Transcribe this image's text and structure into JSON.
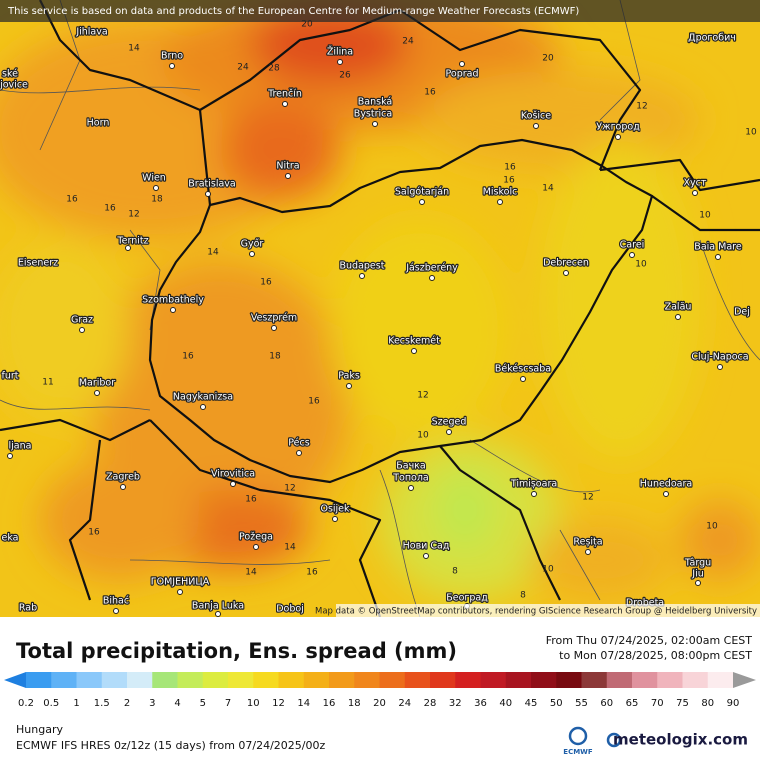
{
  "map": {
    "notice": "This service is based on data and products of the European Centre for Medium-range Weather Forecasts (ECMWF)",
    "attribution": "Map data © OpenStreetMap contributors, rendering GIScience Research Group @ Heidelberg University",
    "cities": [
      "Jihlava",
      "Brno",
      "Žilina",
      "Poprad",
      "Дрогобич",
      "Trenčín",
      "Banská",
      "Bystrica",
      "Košice",
      "Ужгород",
      "Horn",
      "Nitra",
      "Wien",
      "Bratislava",
      "Salgótarján",
      "Miskolc",
      "Хуст",
      "Ternitz",
      "Győr",
      "Carei",
      "Baia Mare",
      "Eisenerz",
      "Budapest",
      "Jászberény",
      "Debrecen",
      "Szombathely",
      "Zalău",
      "Graz",
      "Veszprém",
      "Dej",
      "Kecskemét",
      "Cluj-Napoca",
      "Maribor",
      "Paks",
      "Békéscsaba",
      "furt",
      "Nagykanizsa",
      "Szeged",
      "Pécs",
      "ljana",
      "Zagreb",
      "Virovitica",
      "Бачка",
      "Топола",
      "Timișoara",
      "Hunedoara",
      "Osijek",
      "Reșița",
      "Požega",
      "Нови Сад",
      "eka",
      "Târgu",
      "Jiu",
      "ГОМЈЕНИЦА",
      "Bihać",
      "Banja Luka",
      "Doboj",
      "Београд",
      "Drobeta",
      "Rab",
      "ské",
      "jovice"
    ],
    "contour_labels": [
      14,
      20,
      24,
      28,
      26,
      24,
      20,
      16,
      12,
      10,
      16,
      16,
      14,
      16,
      16,
      12,
      18,
      10,
      14,
      16,
      10,
      18,
      16,
      11,
      16,
      12,
      10,
      12,
      16,
      12,
      14,
      16,
      10,
      14,
      16,
      8,
      10,
      8
    ]
  },
  "footer": {
    "title": "Total precipitation, Ens. spread (mm)",
    "period_from": "From Thu 07/24/2025, 02:00am CEST",
    "period_to": "to Mon 07/28/2025, 08:00pm CEST",
    "legend_values": [
      0.2,
      0.5,
      1,
      1.5,
      2,
      3,
      4,
      5,
      7,
      10,
      12,
      14,
      16,
      18,
      20,
      24,
      28,
      32,
      36,
      40,
      45,
      50,
      55,
      60,
      65,
      70,
      75,
      80,
      90
    ],
    "legend_colors": [
      "#1e7fe0",
      "#3a9cf0",
      "#5fb2f6",
      "#8ac8fa",
      "#b2dcfa",
      "#d4ecf8",
      "#a6e678",
      "#c4ec5a",
      "#dcec40",
      "#eee836",
      "#f6da20",
      "#f6c418",
      "#f4b018",
      "#f29a1a",
      "#f0861c",
      "#ec6e1c",
      "#e8521c",
      "#e0381c",
      "#d42020",
      "#c01a24",
      "#a81420",
      "#900e18",
      "#780a10",
      "#8c3838",
      "#c06a74",
      "#e0929e",
      "#f0b4bc",
      "#f8d4d8",
      "#fcecee",
      "#c8c8c8",
      "#9a9a9a"
    ],
    "region": "Hungary",
    "model": "ECMWF IFS HRES 0z/12z (15 days) from  07/24/2025/00z",
    "ecmwf_logo": "ECMWF",
    "brand": "meteologix.com"
  }
}
